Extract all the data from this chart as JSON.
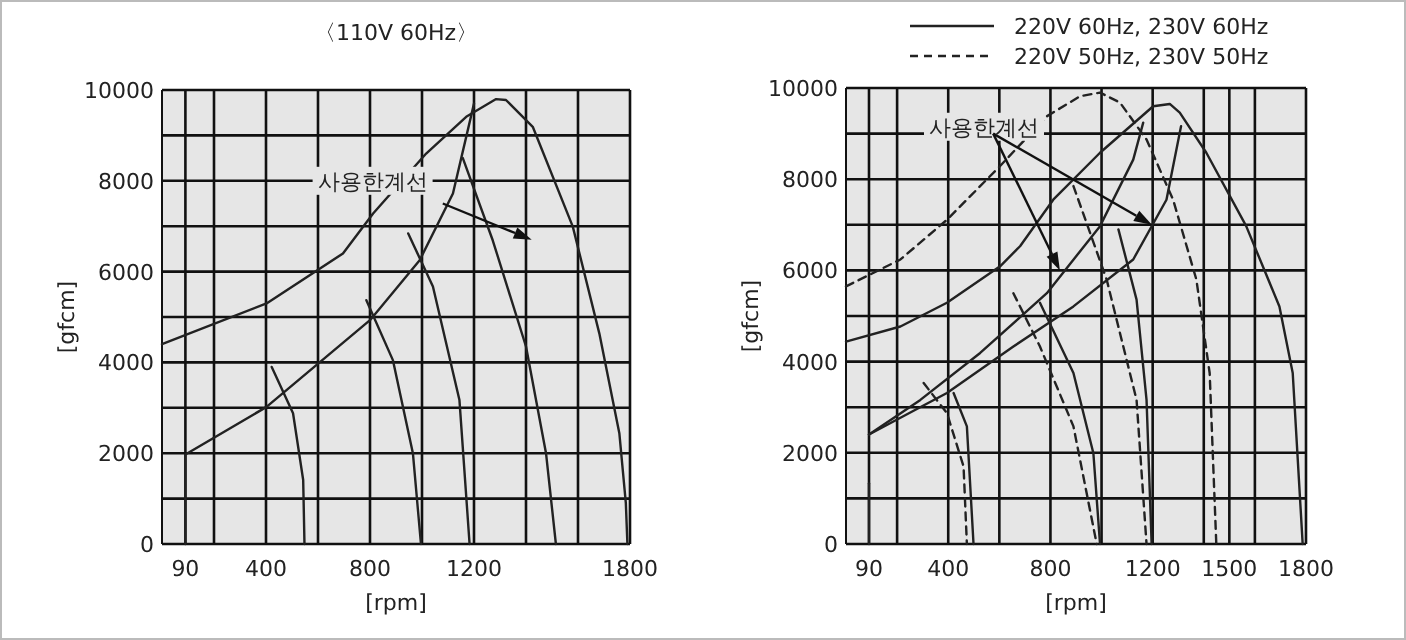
{
  "chart_data": [
    {
      "type": "line",
      "title": "〈110V 60Hz〉",
      "xlabel": "[rpm]",
      "ylabel": "[gfcm]",
      "xlim": [
        0,
        1800
      ],
      "ylim": [
        0,
        10000
      ],
      "xticks": [
        90,
        {
          "value": 200,
          "label": null
        },
        400,
        {
          "value": 600,
          "label": null
        },
        800,
        {
          "value": 1000,
          "label": null
        },
        1200,
        {
          "value": 1400,
          "label": null
        },
        {
          "value": 1600,
          "label": null
        },
        1800
      ],
      "yticks": [
        0,
        {
          "value": 1000,
          "label": null
        },
        2000,
        {
          "value": 3000,
          "label": null
        },
        4000,
        {
          "value": 5000,
          "label": null
        },
        6000,
        {
          "value": 7000,
          "label": null
        },
        8000,
        {
          "value": 9000,
          "label": null
        },
        10000
      ],
      "grid": true,
      "annotations": [
        "사용한계선"
      ],
      "series": [
        {
          "type": "line",
          "color": "#222222",
          "line_style": "solid",
          "x": [
            0,
            402,
            696,
            812,
            1016,
            1170,
            1285,
            1323,
            1426,
            1580,
            1682,
            1759,
            1784,
            1790
          ],
          "values": [
            4400,
            5300,
            6400,
            7280,
            8600,
            9410,
            9800,
            9780,
            9190,
            6990,
            4640,
            2440,
            900,
            0
          ]
        },
        {
          "type": "line",
          "color": "#222222",
          "line_style": "solid",
          "x": [
            90,
            90,
            402,
            800,
            991,
            1119,
            1200
          ],
          "values": [
            0,
            1970,
            3020,
            4930,
            6250,
            7720,
            9700
          ]
        },
        {
          "type": "line",
          "color": "#222222",
          "line_style": "solid",
          "x": [
            422,
            504,
            543,
            548
          ],
          "values": [
            3900,
            2880,
            1410,
            0
          ]
        },
        {
          "type": "line",
          "color": "#222222",
          "line_style": "solid",
          "x": [
            786,
            888,
            965,
            996
          ],
          "values": [
            5370,
            4050,
            2000,
            0
          ]
        },
        {
          "type": "line",
          "color": "#222222",
          "line_style": "solid",
          "x": [
            947,
            1042,
            1144,
            1183
          ],
          "values": [
            6840,
            5670,
            3170,
            0
          ]
        },
        {
          "type": "line",
          "color": "#222222",
          "line_style": "solid",
          "x": [
            1157,
            1272,
            1400,
            1477,
            1515
          ],
          "values": [
            8500,
            6690,
            4350,
            2000,
            0
          ]
        }
      ]
    },
    {
      "type": "line",
      "xlabel": "[rpm]",
      "ylabel": "[gfcm]",
      "xlim": [
        0,
        1800
      ],
      "ylim": [
        0,
        10000
      ],
      "xticks": [
        90,
        {
          "value": 200,
          "label": null
        },
        400,
        {
          "value": 600,
          "label": null
        },
        800,
        {
          "value": 1000,
          "label": null
        },
        1200,
        {
          "value": 1400,
          "label": null
        },
        1500,
        {
          "value": 1600,
          "label": null
        },
        1800
      ],
      "yticks": [
        0,
        {
          "value": 1000,
          "label": null
        },
        2000,
        {
          "value": 3000,
          "label": null
        },
        4000,
        {
          "value": 5000,
          "label": null
        },
        6000,
        {
          "value": 7000,
          "label": null
        },
        8000,
        {
          "value": 9000,
          "label": null
        },
        10000
      ],
      "grid": true,
      "legend": "top",
      "annotations": [
        "사용한계선"
      ],
      "series": [
        {
          "type": "line",
          "name": "220V 60Hz, 230V 60Hz",
          "color": "#222222",
          "line_style": "solid",
          "x": [
            0,
            213,
            395,
            603,
            681,
            811,
            994,
            1202,
            1267,
            1306,
            1410,
            1566,
            1696,
            1748,
            1787
          ],
          "values": [
            4440,
            4770,
            5290,
            6090,
            6530,
            7550,
            8580,
            9600,
            9650,
            9460,
            8580,
            6970,
            5210,
            3750,
            0
          ]
        },
        {
          "type": "line",
          "color": "#222222",
          "line_style": "solid",
          "x": [
            90,
            291,
            525,
            786,
            994,
            1124,
            1163
          ],
          "values": [
            2400,
            3160,
            4190,
            5500,
            6970,
            8430,
            9240
          ]
        },
        {
          "type": "line",
          "color": "#222222",
          "line_style": "solid",
          "x": [
            90,
            395,
            655,
            890,
            1124,
            1254,
            1311
          ],
          "values": [
            2400,
            3310,
            4330,
            5210,
            6240,
            7550,
            9160
          ]
        },
        {
          "type": "line",
          "color": "#222222",
          "line_style": "solid",
          "x": [
            90,
            90
          ],
          "values": [
            0,
            1330
          ]
        },
        {
          "type": "line",
          "color": "#222222",
          "line_style": "solid",
          "x": [
            421,
            473,
            499
          ],
          "values": [
            3310,
            2580,
            0
          ]
        },
        {
          "type": "line",
          "color": "#222222",
          "line_style": "solid",
          "x": [
            759,
            890,
            968,
            994
          ],
          "values": [
            5290,
            3750,
            1990,
            0
          ]
        },
        {
          "type": "line",
          "color": "#222222",
          "line_style": "solid",
          "x": [
            1066,
            1137,
            1176,
            1196
          ],
          "values": [
            6900,
            5360,
            3160,
            0
          ]
        },
        {
          "type": "line",
          "name": "220V 50Hz, 230V 50Hz",
          "color": "#222222",
          "line_style": "dashed",
          "x": [
            0,
            213,
            395,
            603,
            786,
            916,
            994,
            1072,
            1176,
            1280,
            1371,
            1423,
            1449
          ],
          "values": [
            5650,
            6240,
            7110,
            8290,
            9380,
            9820,
            9900,
            9680,
            8870,
            7550,
            5800,
            3750,
            0
          ]
        },
        {
          "type": "line",
          "color": "#222222",
          "line_style": "dashed",
          "x": [
            304,
            395,
            460,
            473
          ],
          "values": [
            3530,
            2870,
            1700,
            0
          ]
        },
        {
          "type": "line",
          "color": "#222222",
          "line_style": "dashed",
          "x": [
            655,
            759,
            890,
            981
          ],
          "values": [
            5500,
            4330,
            2580,
            0
          ]
        },
        {
          "type": "line",
          "color": "#222222",
          "line_style": "dashed",
          "x": [
            890,
            1020,
            1137,
            1176
          ],
          "values": [
            7850,
            5800,
            3160,
            0
          ]
        }
      ]
    }
  ]
}
